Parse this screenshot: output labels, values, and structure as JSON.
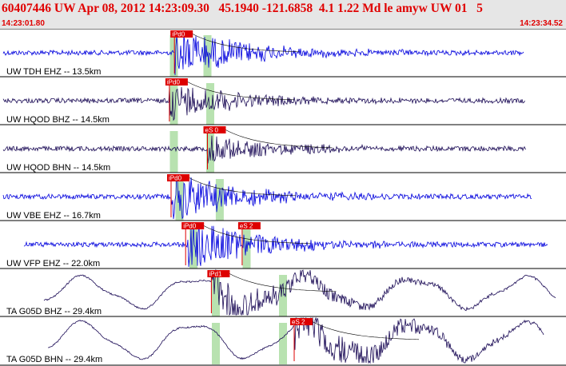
{
  "header": {
    "title": "60407446 UW Apr 08, 2012 14:23:09.30   45.1940 -121.6858  4.1 1.22 Md le amyw UW 01   5",
    "time_start": "14:23:01.80",
    "time_end": "14:23:34.52"
  },
  "colors": {
    "header_bg": "#e6e6e6",
    "header_text": "#e00000",
    "trace_blue": "#0000dd",
    "trace_navy": "#1a0a55",
    "pick_red": "#dd0000",
    "window_green": "#b8e2b0"
  },
  "channels": [
    {
      "label": "UW TDH EHZ -- 13.5km",
      "color": "blue",
      "picks": [
        {
          "label": "iPd0",
          "t": 0.306
        }
      ],
      "windows": [
        0.305,
        0.365
      ]
    },
    {
      "label": "UW HQOD BHZ -- 14.5km",
      "color": "navy",
      "picks": [
        {
          "label": "iPd0",
          "t": 0.297
        }
      ],
      "windows": [
        0.305,
        0.37
      ]
    },
    {
      "label": "UW HQOD BHN -- 14.5km",
      "color": "navy",
      "picks": [
        {
          "label": "eS 0",
          "t": 0.365
        }
      ],
      "windows": [
        0.305,
        0.37
      ]
    },
    {
      "label": "UW VBE EHZ -- 16.7km",
      "color": "blue",
      "picks": [
        {
          "label": "iPd0",
          "t": 0.3
        }
      ],
      "windows": [
        0.315,
        0.387
      ]
    },
    {
      "label": "UW VFP EHZ -- 22.0km",
      "color": "blue",
      "picks": [
        {
          "label": "iPd0",
          "t": 0.326
        },
        {
          "label": "eS 2",
          "t": 0.427
        }
      ],
      "windows": [
        0.34,
        0.435
      ]
    },
    {
      "label": "TA G05D BHZ -- 29.4km",
      "color": "navy",
      "picks": [
        {
          "label": "iPd1",
          "t": 0.372
        }
      ],
      "windows": [
        0.38,
        0.5
      ]
    },
    {
      "label": "TA G05D BHN -- 29.4km",
      "color": "navy",
      "picks": [
        {
          "label": "eS 2",
          "t": 0.52
        }
      ],
      "windows": [
        0.38,
        0.5
      ]
    }
  ]
}
